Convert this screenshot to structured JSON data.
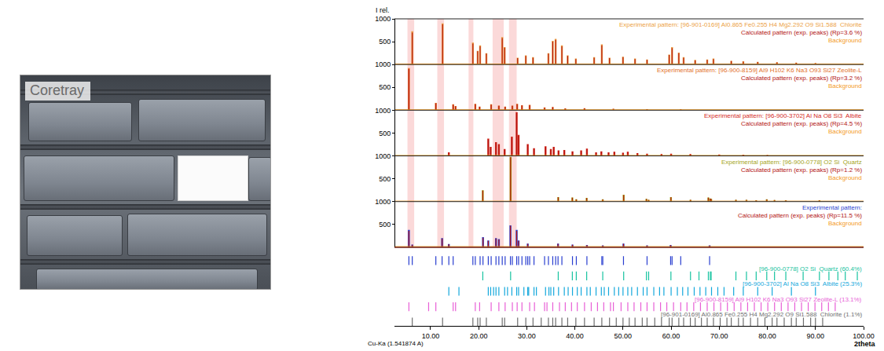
{
  "chart_data": {
    "type": "bar",
    "photo_label": "Coretray",
    "y_label": "I rel.",
    "x_label": "2theta",
    "note": "Cu-Ka (1.541874 A)",
    "xlim": [
      2.5,
      100
    ],
    "xticks": [
      {
        "value": 10,
        "label": "10.00"
      },
      {
        "value": 20,
        "label": "20.00"
      },
      {
        "value": 30,
        "label": "30.00"
      },
      {
        "value": 40,
        "label": "40.00"
      },
      {
        "value": 50,
        "label": "50.00"
      },
      {
        "value": 60,
        "label": "60.00"
      },
      {
        "value": 70,
        "label": "70.00"
      },
      {
        "value": 80,
        "label": "80.00"
      },
      {
        "value": 90,
        "label": "90.00"
      },
      {
        "value": 100,
        "label": "100.00"
      }
    ],
    "bands": [
      [
        5.2,
        6.6
      ],
      [
        11.4,
        12.8
      ],
      [
        17.9,
        18.9
      ],
      [
        22.9,
        25.2
      ],
      [
        26.3,
        27.9
      ]
    ],
    "panels": [
      {
        "ylim": [
          0,
          1000
        ],
        "yticks": [
          500,
          1000
        ],
        "x": [
          6.2,
          12.5,
          18.8,
          19.8,
          20.3,
          21.6,
          24.9,
          25.4,
          28.1,
          29.8,
          31.3,
          34.5,
          35.4,
          36.0,
          37.3,
          38.5,
          40.2,
          44.0,
          45.6,
          47.2,
          50.0,
          52.5,
          55.0,
          59.6,
          60.2,
          61.6,
          62.6,
          65.0,
          67.5,
          68.8,
          72.5,
          75.0,
          78.0,
          82.0,
          86.0,
          90.0
        ],
        "series": [
          {
            "name": "Experimental pattern: [96-901-0169] Al0.865 Fe0.255 H4 Mg2.292 O9 Si1.588  Chlorite",
            "color": "#ec9f45",
            "values": [
              730,
              900,
              480,
              300,
              420,
              250,
              600,
              380,
              150,
              200,
              160,
              250,
              520,
              560,
              420,
              200,
              130,
              160,
              440,
              150,
              170,
              130,
              110,
              220,
              380,
              260,
              160,
              100,
              110,
              130,
              80,
              70,
              60,
              50,
              40,
              35
            ]
          },
          {
            "name": "Calculated pattern (exp. peaks) (Rp=3.6 %)",
            "color": "#b3120f",
            "values": [
              700,
              880,
              460,
              290,
              400,
              240,
              580,
              370,
              140,
              190,
              150,
              240,
              500,
              540,
              400,
              190,
              120,
              150,
              420,
              140,
              160,
              120,
              100,
              210,
              360,
              250,
              150,
              90,
              100,
              120,
              75,
              65,
              55,
              45,
              38,
              30
            ]
          },
          {
            "name": "Background",
            "color": "#f39a1e",
            "type": "line",
            "x": [
              2.5,
              100
            ],
            "values": [
              12,
              12
            ]
          }
        ]
      },
      {
        "ylim": [
          0,
          1000
        ],
        "yticks": [
          500,
          1000
        ],
        "x": [
          5.5,
          11.1,
          14.7,
          15.2,
          19.3,
          20.2,
          22.6,
          24.2,
          25.5,
          27.0,
          28.0,
          29.0,
          30.6,
          33.7,
          35.4,
          38.0,
          42.0,
          48.0,
          55.0,
          62.0
        ],
        "series": [
          {
            "name": "Experimental pattern: [96-900-8159] Al9 H102 K6 Na3 O93 Si27 Zeolite-L",
            "color": "#e2702a",
            "values": [
              920,
              160,
              130,
              90,
              140,
              80,
              130,
              100,
              80,
              100,
              140,
              110,
              120,
              60,
              70,
              40,
              45,
              30,
              25,
              20
            ]
          },
          {
            "name": "Calculated pattern (exp. peaks) (Rp=3.2 %)",
            "color": "#b3120f",
            "values": [
              900,
              150,
              120,
              85,
              130,
              75,
              120,
              95,
              75,
              95,
              130,
              105,
              110,
              55,
              65,
              38,
              40,
              28,
              22,
              18
            ]
          },
          {
            "name": "Background",
            "color": "#f39a1e",
            "type": "line",
            "x": [
              2.5,
              100
            ],
            "values": [
              10,
              10
            ]
          }
        ]
      },
      {
        "ylim": [
          0,
          1000
        ],
        "yticks": [
          500,
          1000
        ],
        "x": [
          13.8,
          22.0,
          22.5,
          23.6,
          24.2,
          25.4,
          26.9,
          27.9,
          28.3,
          30.2,
          31.5,
          33.9,
          35.0,
          35.6,
          36.6,
          37.8,
          39.5,
          41.3,
          42.5,
          44.4,
          45.5,
          47.0,
          48.2,
          50.0,
          51.0,
          53.0,
          55.0,
          58.0,
          60.0,
          64.0,
          70.0,
          75.0,
          80.0
        ],
        "series": [
          {
            "name": "Experimental pattern: [96-900-3702] Al Na O8 Si3  Albite",
            "color": "#d42a1e",
            "values": [
              80,
              380,
              200,
              300,
              260,
              150,
              420,
              960,
              460,
              260,
              170,
              210,
              150,
              200,
              120,
              130,
              100,
              120,
              160,
              80,
              100,
              80,
              90,
              70,
              90,
              60,
              50,
              40,
              50,
              40,
              30,
              25,
              20
            ]
          },
          {
            "name": "Calculated pattern (exp. peaks) (Rp=4.5 %)",
            "color": "#b3120f",
            "values": [
              75,
              360,
              190,
              290,
              250,
              140,
              400,
              940,
              440,
              250,
              160,
              200,
              140,
              190,
              110,
              120,
              95,
              110,
              150,
              75,
              95,
              75,
              85,
              65,
              85,
              55,
              45,
              38,
              45,
              38,
              28,
              22,
              18
            ]
          },
          {
            "name": "Background",
            "color": "#f39a1e",
            "type": "line",
            "x": [
              2.5,
              100
            ],
            "values": [
              10,
              10
            ]
          }
        ]
      },
      {
        "ylim": [
          0,
          1000
        ],
        "yticks": [
          500,
          1000
        ],
        "x": [
          20.86,
          26.64,
          36.54,
          39.47,
          40.29,
          42.45,
          45.79,
          50.14,
          54.87,
          55.33,
          59.96,
          64.03,
          67.74,
          68.14,
          68.32,
          73.47,
          75.66,
          77.68,
          79.88,
          81.49,
          83.84,
          90.83
        ],
        "series": [
          {
            "name": "Experimental pattern: [96-900-0778] O2 Si  Quartz",
            "color": "#a5a51c",
            "values": [
              250,
              980,
              100,
              90,
              50,
              80,
              50,
              150,
              60,
              40,
              100,
              40,
              90,
              70,
              60,
              40,
              40,
              30,
              50,
              35,
              30,
              30
            ]
          },
          {
            "name": "Calculated pattern (exp. peaks) (Rp=1.2 %)",
            "color": "#b3120f",
            "values": [
              240,
              970,
              95,
              85,
              45,
              75,
              45,
              140,
              55,
              38,
              95,
              38,
              85,
              65,
              55,
              38,
              38,
              28,
              45,
              32,
              28,
              28
            ]
          },
          {
            "name": "Background",
            "color": "#f39a1e",
            "type": "line",
            "x": [
              2.5,
              100
            ],
            "values": [
              10,
              10
            ]
          }
        ]
      },
      {
        "ylim": [
          0,
          1000
        ],
        "yticks": [
          500,
          1000
        ],
        "x": [
          5.5,
          6.2,
          12.4,
          13.8,
          20.9,
          22.0,
          23.6,
          24.2,
          26.6,
          27.9,
          28.3,
          30.2,
          36.5,
          39.5,
          42.5,
          45.8,
          50.1,
          55.0,
          59.9,
          68.0
        ],
        "series": [
          {
            "name": "Experimental pattern:",
            "color": "#2a3fd0",
            "values": [
              380,
              60,
              200,
              70,
              220,
              150,
              200,
              180,
              480,
              380,
              150,
              80,
              80,
              60,
              50,
              40,
              80,
              40,
              50,
              40
            ]
          },
          {
            "name": "Calculated pattern (exp. peaks) (Rp=11.5 %)",
            "color": "#b3120f",
            "values": [
              360,
              55,
              190,
              65,
              210,
              140,
              190,
              170,
              470,
              360,
              140,
              75,
              75,
              55,
              45,
              38,
              75,
              38,
              45,
              38
            ]
          },
          {
            "name": "Background",
            "color": "#f39a1e",
            "type": "line",
            "x": [
              2.5,
              100
            ],
            "values": [
              15,
              15
            ]
          }
        ]
      }
    ],
    "reference_ticks": [
      {
        "color": "#2a3fd0",
        "x": [
          5.5,
          6.2,
          11.1,
          12.4,
          13.8,
          14.7,
          18.8,
          19.3,
          20.3,
          20.9,
          22.0,
          22.6,
          23.6,
          24.2,
          24.9,
          25.5,
          26.6,
          27.0,
          27.9,
          28.3,
          29.0,
          29.8,
          30.2,
          30.6,
          31.5,
          33.7,
          34.5,
          35.4,
          36.0,
          36.5,
          37.3,
          39.5,
          40.3,
          42.5,
          45.6,
          45.8,
          50.1,
          55.0,
          59.9,
          60.2,
          62.0,
          68.0
        ]
      },
      {
        "name": "[96-900-0778] O2 Si  Quartz (60.4%)",
        "color": "#17c3a0",
        "x": [
          20.86,
          26.64,
          36.54,
          39.47,
          40.29,
          42.45,
          45.79,
          50.14,
          54.87,
          55.33,
          59.96,
          64.03,
          65.79,
          67.74,
          68.14,
          68.32,
          73.47,
          75.66,
          77.68,
          79.88,
          81.49,
          83.84,
          87.44,
          90.83,
          92.8,
          94.66,
          96.2,
          98.7
        ]
      },
      {
        "name": "[96-900-3702] Al Na O8 Si3  Albite (25.3%)",
        "color": "#14a8dc",
        "x": [
          13.8,
          15.9,
          22.0,
          22.5,
          23.1,
          23.6,
          24.2,
          25.4,
          26.0,
          26.9,
          27.9,
          28.3,
          29.4,
          30.2,
          30.4,
          31.5,
          32.0,
          33.9,
          34.6,
          35.0,
          35.6,
          36.6,
          37.8,
          38.6,
          39.5,
          40.5,
          41.3,
          42.5,
          43.2,
          44.4,
          45.5,
          46.1,
          47.0,
          48.2,
          49.1,
          50.0,
          51.0,
          51.8,
          53.0,
          54.2,
          55.0,
          56.4,
          57.6,
          58.5,
          60.0,
          61.3,
          62.4,
          63.5,
          64.8,
          66.0,
          67.2,
          68.4,
          69.7,
          71.0,
          73.0,
          75.0,
          78.0,
          81.0,
          85.0,
          90.0
        ]
      },
      {
        "name": "[96-900-8159] Al9 H102 K6 Na3 O93 Si27 Zeolite-L (13.1%)",
        "color": "#e85fd6",
        "x": [
          5.5,
          9.6,
          11.1,
          14.7,
          15.2,
          19.3,
          20.2,
          22.6,
          24.2,
          25.5,
          27.0,
          28.0,
          29.0,
          30.6,
          31.6,
          33.7,
          34.2,
          35.4,
          36.8,
          38.0,
          39.3,
          40.5,
          42.0,
          43.4,
          44.7,
          46.0,
          47.4,
          48.0,
          49.6,
          51.0,
          52.3,
          53.7,
          55.0,
          56.4,
          57.8,
          59.1,
          60.5,
          62.0,
          63.3,
          64.7,
          66.1,
          67.5,
          68.9,
          70.3,
          71.7,
          73.1,
          74.5,
          75.9,
          77.3,
          78.7,
          80.1,
          81.5,
          82.9,
          84.3,
          85.7,
          87.1,
          88.5,
          89.9,
          91.3,
          92.7,
          94.1
        ]
      },
      {
        "name": "[96-901-0169] Al0.865 Fe0.255 H4 Mg2.292 O9 Si1.588  Chlorite (1.1%)",
        "color": "#6f6f6f",
        "x": [
          6.2,
          12.5,
          18.8,
          19.8,
          20.3,
          21.6,
          24.9,
          25.4,
          28.1,
          29.8,
          31.3,
          33.0,
          34.5,
          35.4,
          36.0,
          37.3,
          38.5,
          40.2,
          42.0,
          44.0,
          45.6,
          47.2,
          48.6,
          50.0,
          51.3,
          52.5,
          54.0,
          55.0,
          56.6,
          58.0,
          59.6,
          60.2,
          61.6,
          62.6,
          64.0,
          65.0,
          66.3,
          67.5,
          68.8,
          70.2,
          71.6,
          72.5,
          74.0,
          75.0,
          76.5,
          78.0,
          79.5,
          81.0,
          82.0,
          83.5,
          85.0,
          86.0,
          87.5,
          89.0,
          90.0,
          91.5
        ]
      }
    ]
  }
}
